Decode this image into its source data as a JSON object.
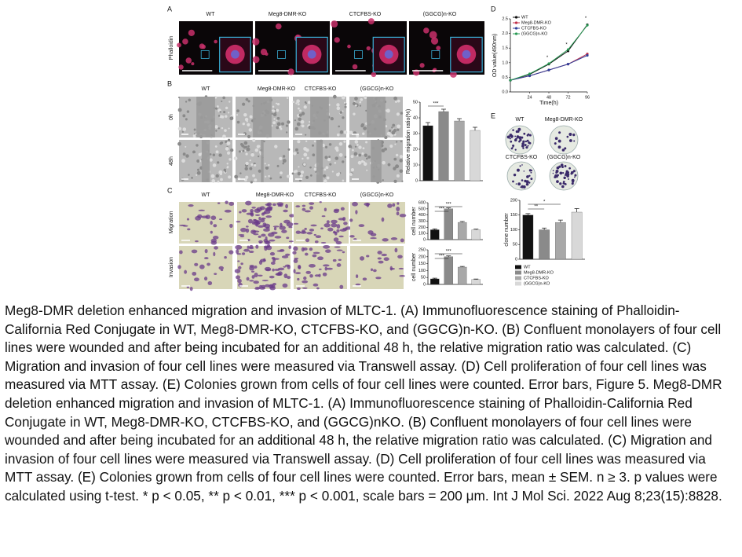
{
  "figure": {
    "panel_labels": [
      "A",
      "B",
      "C",
      "D",
      "E"
    ],
    "panel_a": {
      "columns": [
        "WT",
        "Meg8-DMR-KO",
        "CTCFBS-KO",
        "(GGCG)n-KO"
      ],
      "row_labels": [
        "Phalloidin"
      ]
    },
    "panel_b": {
      "columns": [
        "WT",
        "Meg8-DMR-KO",
        "CTCFBS-KO",
        "(GGCG)n-KO"
      ],
      "row_labels": [
        "0h",
        "48h"
      ]
    },
    "panel_c": {
      "columns": [
        "WT",
        "Meg8-DMR-KO",
        "CTCFBS-KO",
        "(GGCG)n-KO"
      ],
      "row_labels": [
        "Migration",
        "Invasion"
      ]
    },
    "panel_e": {
      "plates": [
        "WT",
        "Meg8-DMR-KO",
        "CTCFBS-KO",
        "(GGCG)n-KO"
      ]
    }
  },
  "chart_data": [
    {
      "type": "bar",
      "y_label": "Relative migration ratio(%)",
      "values": [
        35,
        44,
        38,
        32
      ],
      "errors": [
        2,
        1.5,
        1.5,
        2
      ],
      "colors": [
        "#111111",
        "#8a8a8a",
        "#a8a8a8",
        "#d8d8d8"
      ],
      "ylim": [
        0,
        50
      ],
      "yticks": [
        0,
        10,
        20,
        30,
        40,
        50
      ],
      "annotations": [
        "***"
      ]
    },
    {
      "type": "bar",
      "y_label": "cell number",
      "values": [
        160,
        500,
        280,
        160
      ],
      "errors": [
        15,
        15,
        15,
        10
      ],
      "colors": [
        "#111111",
        "#8a8a8a",
        "#a8a8a8",
        "#d8d8d8"
      ],
      "ylim": [
        0,
        600
      ],
      "yticks": [
        0,
        100,
        200,
        300,
        400,
        500,
        600
      ],
      "annotations": [
        "***",
        "***"
      ]
    },
    {
      "type": "bar",
      "y_label": "cell number",
      "values": [
        40,
        200,
        125,
        35
      ],
      "errors": [
        5,
        6,
        5,
        4
      ],
      "colors": [
        "#111111",
        "#8a8a8a",
        "#a8a8a8",
        "#d8d8d8"
      ],
      "ylim": [
        0,
        250
      ],
      "yticks": [
        0,
        50,
        100,
        150,
        200,
        250
      ],
      "annotations": [
        "***",
        "***"
      ]
    },
    {
      "type": "line",
      "y_label": "OD value(490nm)",
      "x_label": "Time(h)",
      "x": [
        0,
        24,
        48,
        72,
        96
      ],
      "series": [
        {
          "name": "WT",
          "color": "#111111",
          "values": [
            0.4,
            0.6,
            0.95,
            1.4,
            2.3
          ]
        },
        {
          "name": "Meg8-DMR-KO",
          "color": "#c0304a",
          "values": [
            0.4,
            0.55,
            0.75,
            0.95,
            1.3
          ]
        },
        {
          "name": "CTCFBS-KO",
          "color": "#2f3f9a",
          "values": [
            0.4,
            0.55,
            0.75,
            0.95,
            1.25
          ]
        },
        {
          "name": "(GGCG)n-KO",
          "color": "#2a9a55",
          "values": [
            0.4,
            0.62,
            0.97,
            1.45,
            2.28
          ]
        }
      ],
      "xlim": [
        0,
        96
      ],
      "ylim": [
        0,
        2.5
      ],
      "xticks": [
        24,
        48,
        72,
        96
      ],
      "yticks": [
        {
          "value": 0,
          "label": "0.0"
        },
        0.5,
        {
          "value": 1,
          "label": "1.0"
        },
        1.5,
        {
          "value": 2,
          "label": "2.0"
        },
        2.5
      ],
      "annotations": [
        "*",
        "*",
        "*"
      ],
      "legend": "upper left"
    },
    {
      "type": "bar",
      "y_label": "clone number",
      "categories": [
        "WT",
        "Meg8-DMR-KO",
        "CTCFBS-KO",
        "(GGCG)n-KO"
      ],
      "values": [
        150,
        100,
        125,
        160
      ],
      "errors": [
        5,
        6,
        8,
        12
      ],
      "colors": [
        "#111111",
        "#8a8a8a",
        "#a8a8a8",
        "#d8d8d8"
      ],
      "ylim": [
        0,
        200
      ],
      "yticks": [
        0,
        50,
        100,
        150,
        200
      ],
      "annotations": [
        "*",
        "**"
      ],
      "legend": "bottom"
    }
  ],
  "caption": "Meg8-DMR deletion enhanced migration and invasion of MLTC-1. (A) Immunofluorescence staining of Phalloidin-California Red Conjugate in WT, Meg8-DMR-KO, CTCFBS-KO, and (GGCG)n-KO. (B) Confluent monolayers of four cell lines were wounded and after being incubated for an additional 48 h, the relative migration ratio was calculated. (C) Migration and invasion of four cell lines were measured via Transwell assay. (D) Cell proliferation of four cell lines was measured via MTT assay. (E) Colonies grown from cells of four cell lines were counted. Error bars, Figure 5. Meg8-DMR deletion enhanced migration and invasion of MLTC-1. (A) Immunofluorescence staining of Phalloidin-California Red Conjugate in WT, Meg8-DMR-KO, CTCFBS-KO, and (GGCG)nKO. (B) Confluent monolayers of four cell lines were wounded and after being incubated for an additional 48 h, the relative migration ratio was calculated. (C) Migration and invasion of four cell lines were measured via Transwell assay. (D) Cell proliferation of four cell lines was measured via MTT assay. (E) Colonies grown from cells of four cell lines were counted. Error bars, mean ± SEM. n ≥ 3. p values were calculated using t-test. * p < 0.05, ** p < 0.01, *** p < 0.001, scale bars = 200 μm. Int J Mol Sci. 2022 Aug 8;23(15):8828."
}
